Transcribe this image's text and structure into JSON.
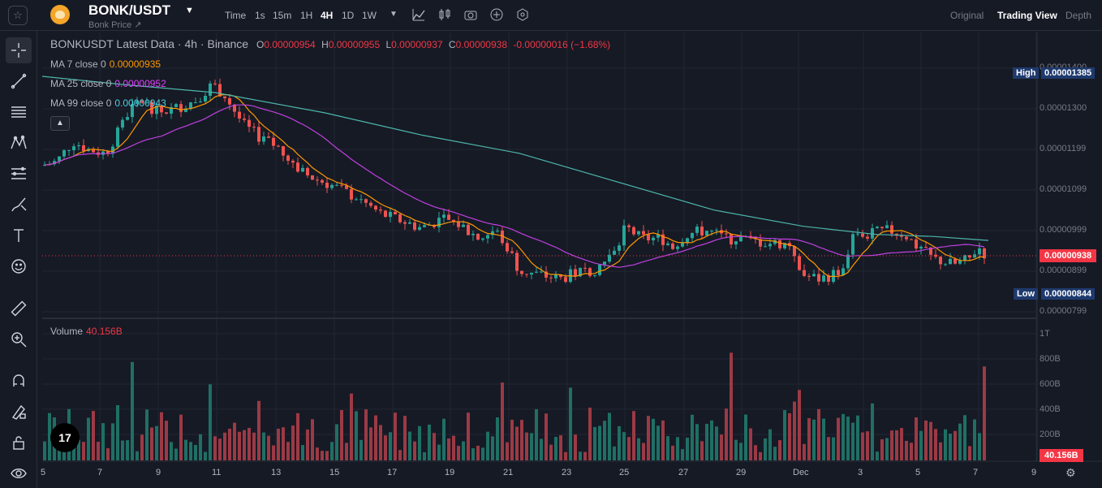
{
  "header": {
    "symbol": "BONK/USDT",
    "subtitle": "Bonk Price ↗",
    "timeframes": [
      "Time",
      "1s",
      "15m",
      "1H",
      "4H",
      "1D",
      "1W"
    ],
    "active_timeframe": "4H",
    "views": [
      "Original",
      "Trading View",
      "Depth"
    ],
    "active_view": "Trading View"
  },
  "legend": {
    "title": "BONKUSDT Latest Data · 4h · Binance",
    "open_label": "O",
    "open": "0.00000954",
    "high_label": "H",
    "high": "0.00000955",
    "low_label": "L",
    "low": "0.00000937",
    "close_label": "C",
    "close": "0.00000938",
    "change": "-0.00000016 (−1.68%)"
  },
  "ma_lines": [
    {
      "label": "MA 7 close 0",
      "value": "0.00000935",
      "color": "#ff9800"
    },
    {
      "label": "MA 25 close 0",
      "value": "0.00000952",
      "color": "#e040fb"
    },
    {
      "label": "MA 99 close 0",
      "value": "0.00000943",
      "color": "#4dd0e1"
    }
  ],
  "volume": {
    "label": "Volume",
    "value": "40.156B",
    "axis_badge": "40.156B"
  },
  "price_axis": {
    "ticks": [
      "0.00001400",
      "0.00001300",
      "0.00001199",
      "0.00001099",
      "0.00000999",
      "0.00000899",
      "0.00000799"
    ],
    "high_label": "High",
    "high_value": "0.00001385",
    "low_label": "Low",
    "low_value": "0.00000844",
    "current": "0.00000938"
  },
  "volume_axis": {
    "ticks": [
      "1T",
      "800B",
      "600B",
      "400B",
      "200B"
    ]
  },
  "date_axis": {
    "ticks": [
      "5",
      "7",
      "9",
      "11",
      "13",
      "15",
      "17",
      "19",
      "21",
      "23",
      "25",
      "27",
      "29",
      "Dec",
      "3",
      "5",
      "7",
      "9"
    ]
  },
  "colors": {
    "up": "#26a69a",
    "down": "#ef5350",
    "bg": "#161a25",
    "grid": "#222632"
  },
  "icons": [
    "star-icon",
    "crosshair-icon",
    "trend-line-icon",
    "fib-icon",
    "pattern-icon",
    "projection-icon",
    "brush-icon",
    "text-icon",
    "emoji-icon",
    "ruler-icon",
    "zoom-in-icon",
    "magnet-icon",
    "lock-draw-icon",
    "lock-icon",
    "eye-icon"
  ]
}
